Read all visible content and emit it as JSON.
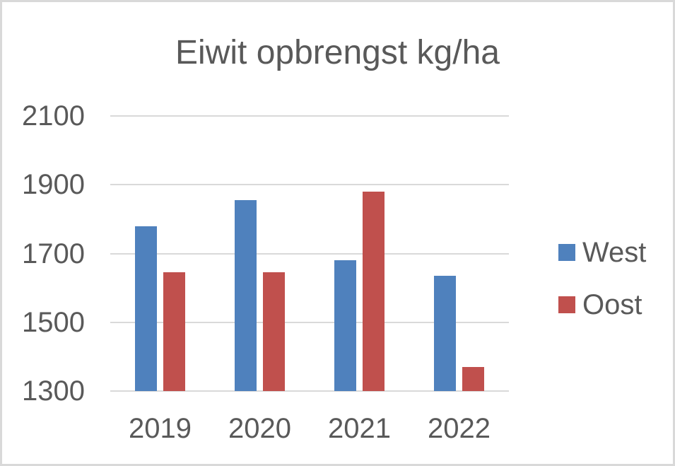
{
  "window": {
    "background_color": "#ffffff",
    "frame_border_color": "#d9d9d9"
  },
  "chart_data": {
    "type": "bar",
    "title": "Eiwit opbrengst kg/ha",
    "categories": [
      "2019",
      "2020",
      "2021",
      "2022"
    ],
    "series": [
      {
        "name": "West",
        "color": "#4f81bd",
        "values": [
          1780,
          1855,
          1680,
          1635
        ]
      },
      {
        "name": "Oost",
        "color": "#c0504d",
        "values": [
          1645,
          1645,
          1880,
          1370
        ]
      }
    ],
    "xlabel": "",
    "ylabel": "",
    "y_axis": {
      "min": 1300,
      "max": 2100,
      "step": 200,
      "ticks": [
        2100,
        1900,
        1700,
        1500,
        1300
      ]
    },
    "grid": true,
    "gridline_color": "#d9d9d9",
    "text_color": "#595959",
    "legend": {
      "position": "right",
      "entries": [
        "West",
        "Oost"
      ]
    }
  }
}
